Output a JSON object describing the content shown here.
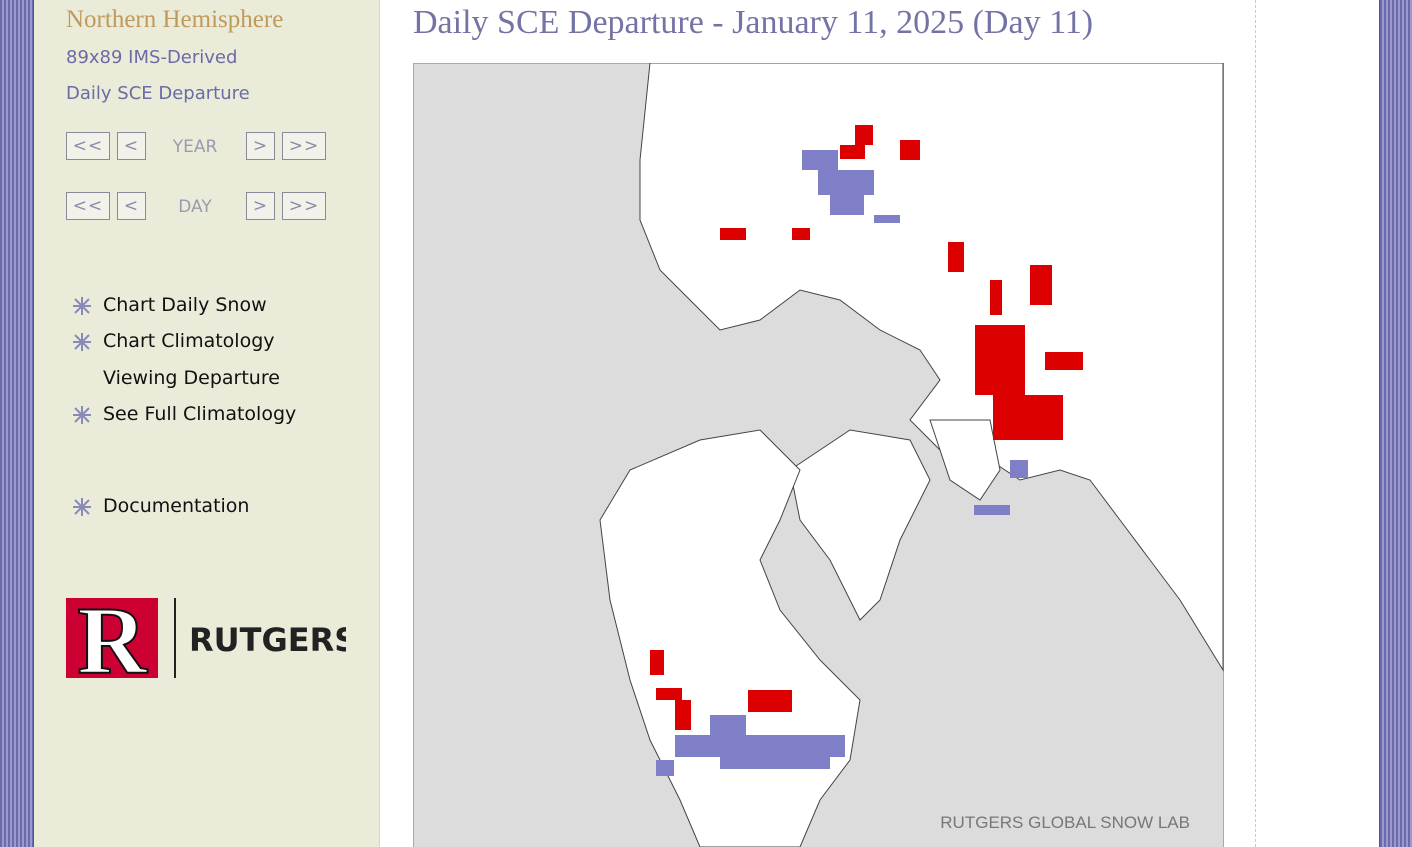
{
  "sidebar": {
    "title": "Northern Hemisphere",
    "subtitle_1": "89x89 IMS-Derived",
    "subtitle_2": "Daily SCE Departure",
    "year_nav": {
      "first": "<<",
      "prev": "<",
      "label": "YEAR",
      "next": ">",
      "last": ">>"
    },
    "day_nav": {
      "first": "<<",
      "prev": "<",
      "label": "DAY",
      "next": ">",
      "last": ">>"
    },
    "menu": [
      "Chart Daily Snow",
      "Chart Climatology",
      "Viewing Departure",
      "See Full Climatology"
    ],
    "documentation": "Documentation",
    "logo": {
      "mark": "R",
      "text": "RUTGERS"
    }
  },
  "main": {
    "title": "Daily SCE Departure - January 11, 2025 (Day 11)",
    "map_credit": "RUTGERS GLOBAL SNOW LAB"
  }
}
